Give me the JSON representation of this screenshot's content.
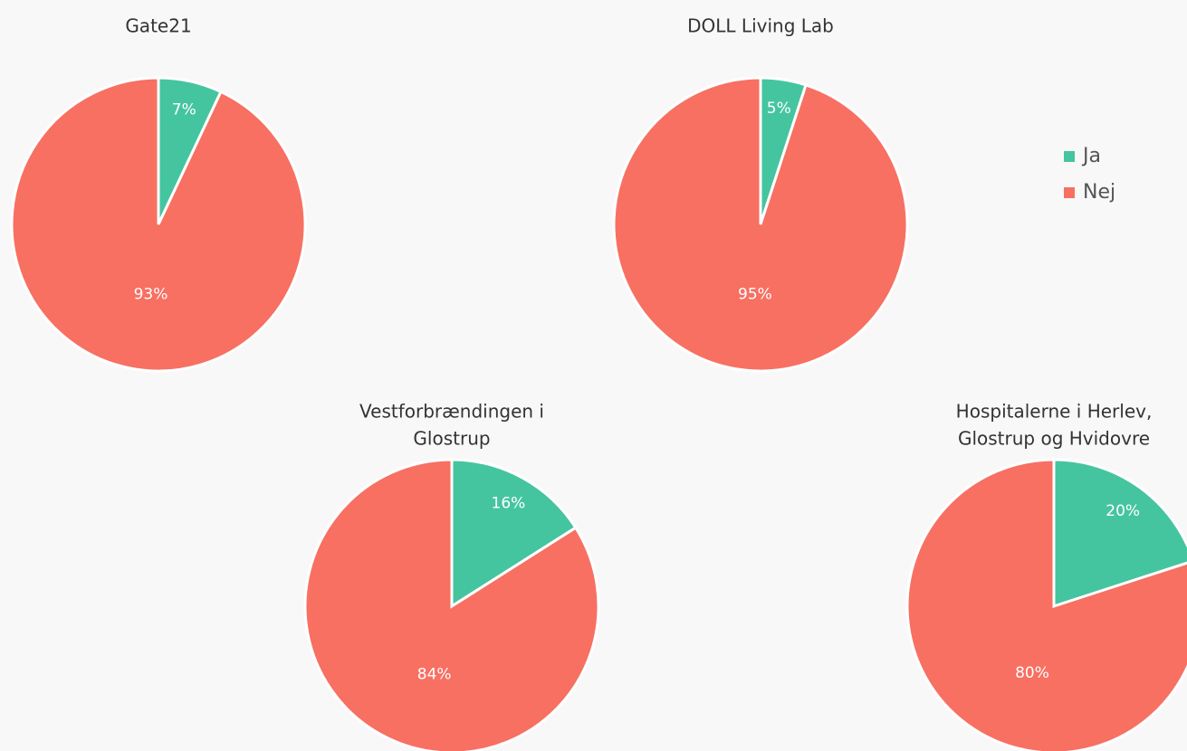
{
  "chart_data": [
    {
      "type": "pie",
      "title": [
        "Gate21"
      ],
      "categories": [
        "Ja",
        "Nej"
      ],
      "values": [
        7,
        93
      ],
      "value_labels": [
        "7%",
        "93%"
      ],
      "colors": [
        "#45c59f",
        "#f77062"
      ]
    },
    {
      "type": "pie",
      "title": [
        "DOLL Living Lab"
      ],
      "categories": [
        "Ja",
        "Nej"
      ],
      "values": [
        5,
        95
      ],
      "value_labels": [
        "5%",
        "95%"
      ],
      "colors": [
        "#45c59f",
        "#f77062"
      ]
    },
    {
      "type": "pie",
      "title": [
        "Vestforbrændingen i",
        "Glostrup"
      ],
      "categories": [
        "Ja",
        "Nej"
      ],
      "values": [
        16,
        84
      ],
      "value_labels": [
        "16%",
        "84%"
      ],
      "colors": [
        "#45c59f",
        "#f77062"
      ]
    },
    {
      "type": "pie",
      "title": [
        "Hospitalerne i Herlev,",
        "Glostrup og Hvidovre"
      ],
      "categories": [
        "Ja",
        "Nej"
      ],
      "values": [
        20,
        80
      ],
      "value_labels": [
        "20%",
        "80%"
      ],
      "colors": [
        "#45c59f",
        "#f77062"
      ]
    }
  ]
}
